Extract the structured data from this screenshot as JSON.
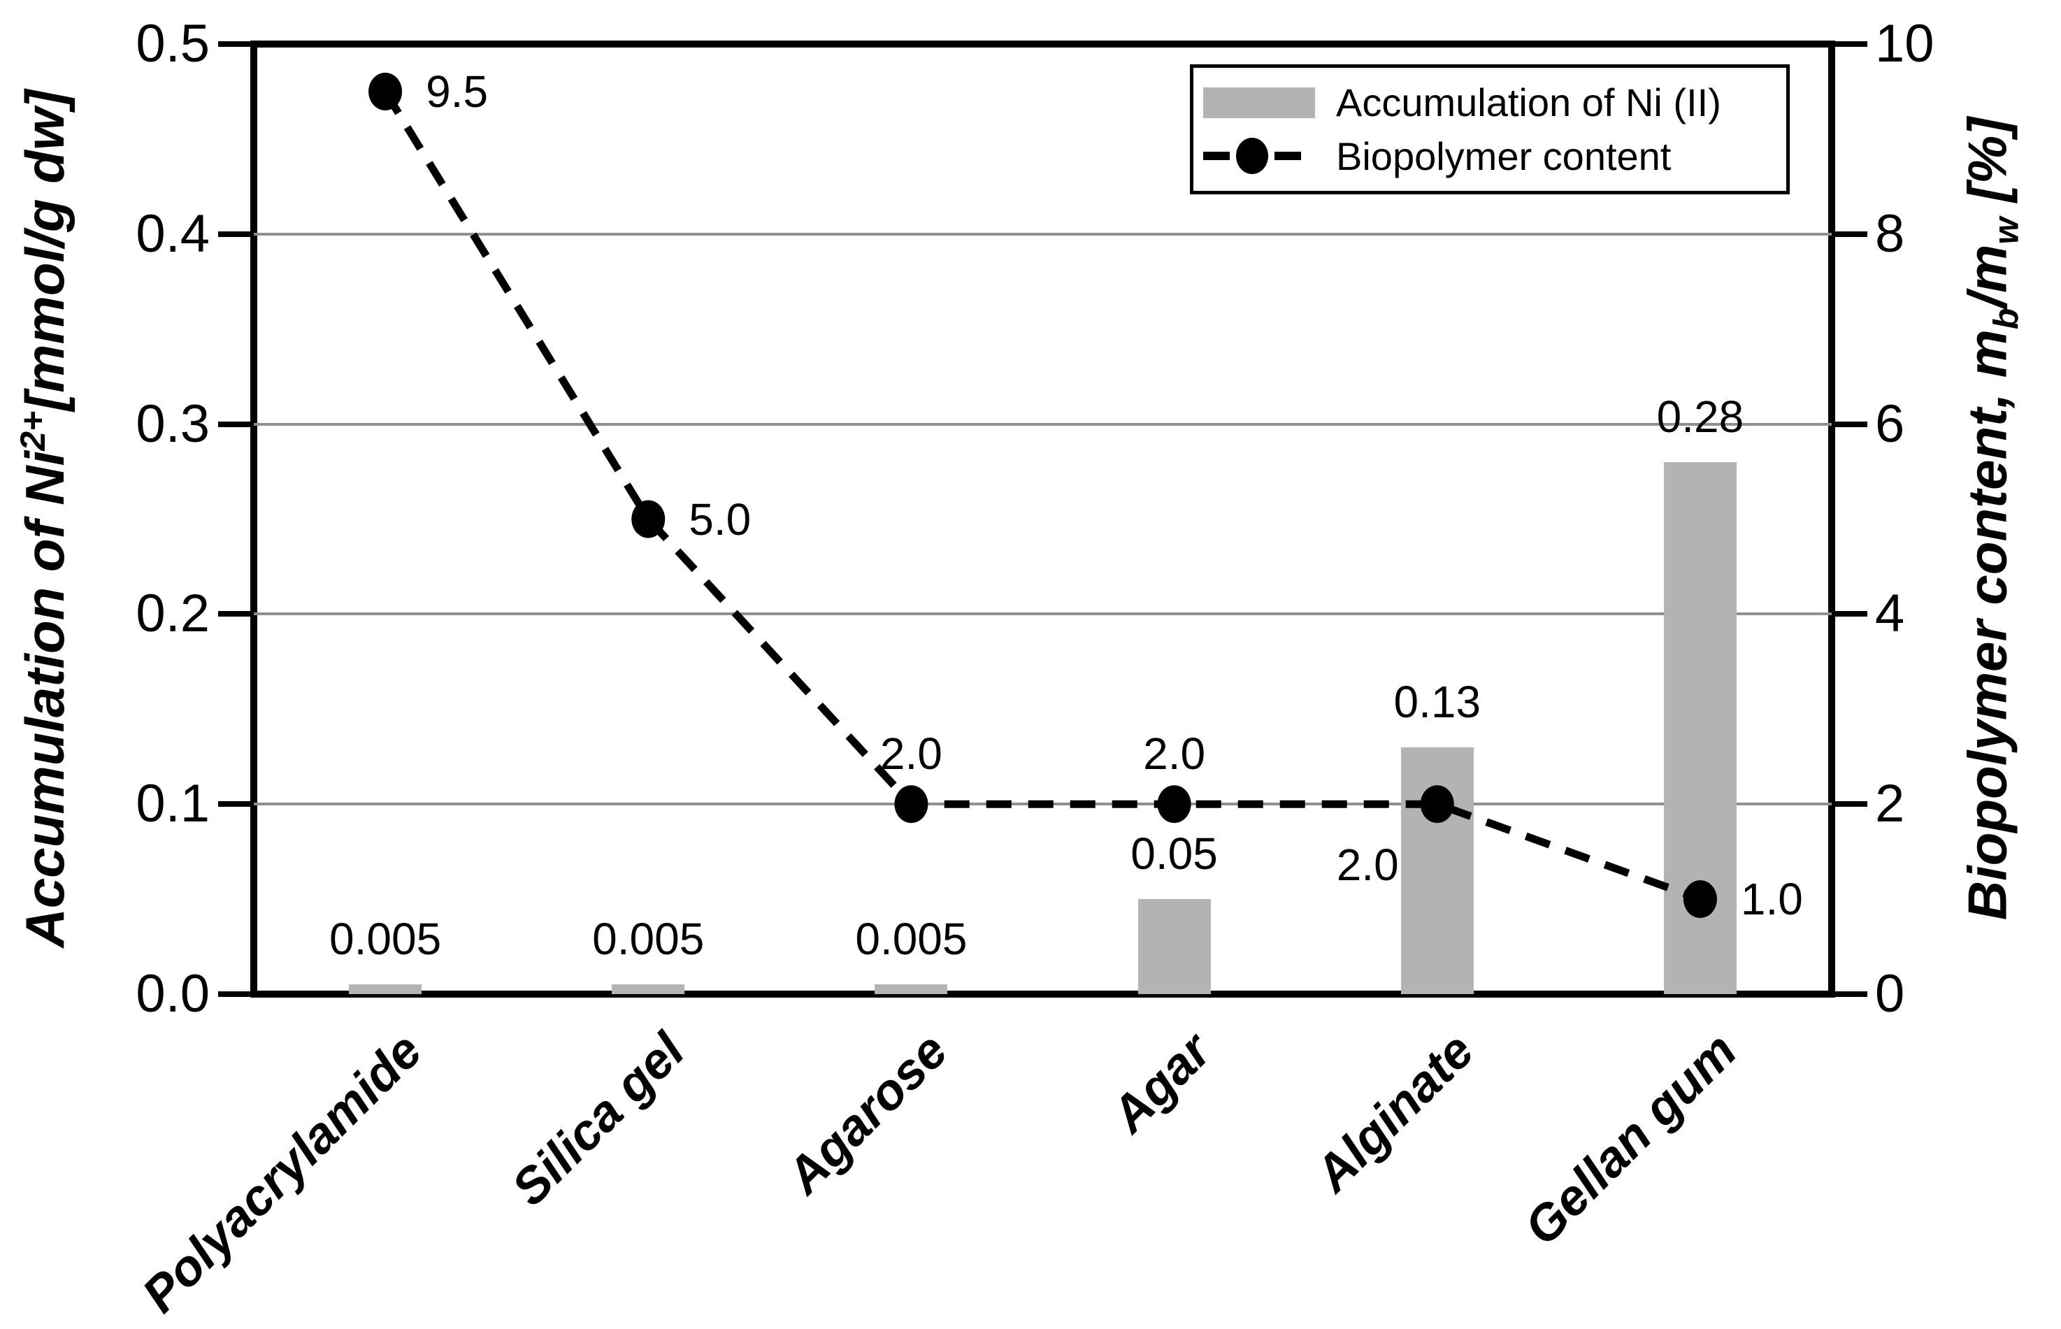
{
  "figure": {
    "background": "#ffffff"
  },
  "chart_data": {
    "type": "combo",
    "categories": [
      "Polyacrylamide",
      "Silica gel",
      "Agarose",
      "Agar",
      "Alginate",
      "Gellan gum"
    ],
    "series": [
      {
        "name": "Accumulation of Ni (II)",
        "type": "bar",
        "axis": "left",
        "color": "#b3b3b3",
        "values": [
          0.005,
          0.005,
          0.005,
          0.05,
          0.13,
          0.28
        ],
        "labels": [
          "0.005",
          "0.005",
          "0.005",
          "0.05",
          "0.13",
          "0.28"
        ]
      },
      {
        "name": "Biopolymer content",
        "type": "line",
        "axis": "right",
        "color": "#000000",
        "line_style": "dashed",
        "marker": "filled-circle",
        "values": [
          9.5,
          5.0,
          2.0,
          2.0,
          2.0,
          1.0
        ],
        "labels": [
          "9.5",
          "5.0",
          "2.0",
          "2.0",
          "2.0",
          "1.0"
        ]
      }
    ],
    "axes": {
      "left": {
        "title_main": "Accumulation of Ni",
        "title_sup": "2+",
        "title_unit": "[mmol/g dw]",
        "min": 0,
        "max": 0.5,
        "ticks": [
          {
            "v": 0.0,
            "label": "0.0"
          },
          {
            "v": 0.1,
            "label": "0.1"
          },
          {
            "v": 0.2,
            "label": "0.2"
          },
          {
            "v": 0.3,
            "label": "0.3"
          },
          {
            "v": 0.4,
            "label": "0.4"
          },
          {
            "v": 0.5,
            "label": "0.5"
          }
        ]
      },
      "right": {
        "title_pre": "Biopolymer content, m",
        "title_sub1": "b",
        "title_mid": "/m",
        "title_sub2": "w",
        "title_post": " [%]",
        "min": 0,
        "max": 10,
        "ticks": [
          {
            "v": 0,
            "label": "0"
          },
          {
            "v": 2,
            "label": "2"
          },
          {
            "v": 4,
            "label": "4"
          },
          {
            "v": 6,
            "label": "6"
          },
          {
            "v": 8,
            "label": "8"
          },
          {
            "v": 10,
            "label": "10"
          }
        ]
      }
    },
    "legend": {
      "position": "top-right",
      "entries": [
        "Accumulation of Ni (II)",
        "Biopolymer content"
      ]
    },
    "grid": {
      "lines": "horizontal",
      "color": "#8f8f8f"
    }
  }
}
